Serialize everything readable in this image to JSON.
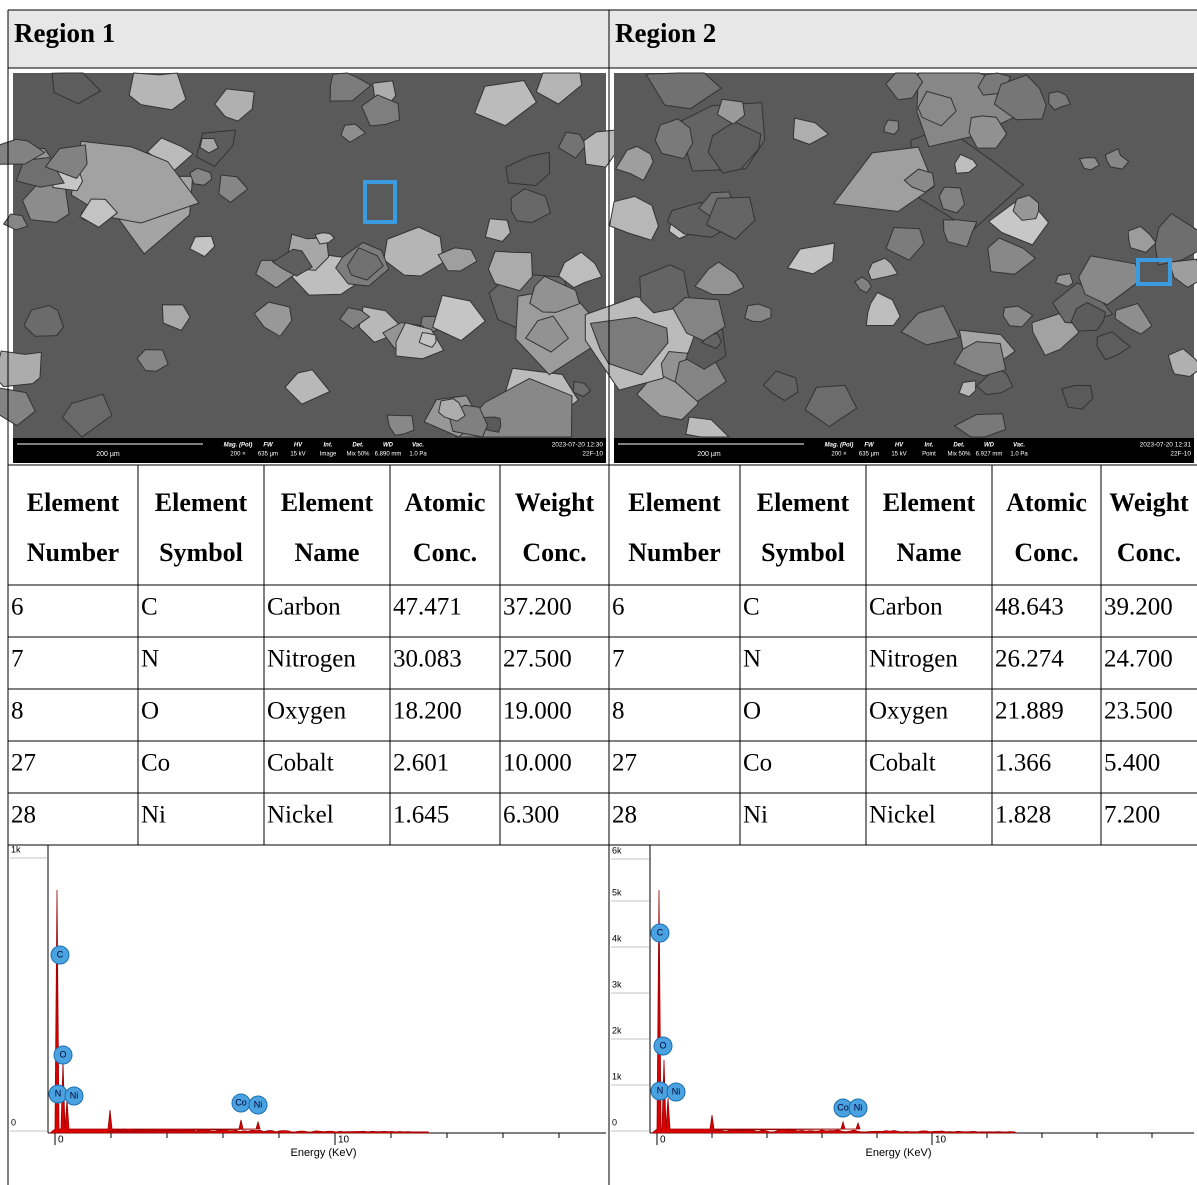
{
  "regions": [
    {
      "title": "Region 1",
      "image": {
        "scale_bar": "200 µm",
        "info": [
          {
            "label": "Mag. (Pol)",
            "value": "200 ×"
          },
          {
            "label": "FW",
            "value": "635 µm"
          },
          {
            "label": "HV",
            "value": "15 kV"
          },
          {
            "label": "Int.",
            "value": "Image"
          },
          {
            "label": "Det.",
            "value": "Mix 50%"
          },
          {
            "label": "WD",
            "value": "6.890 mm"
          },
          {
            "label": "Vac.",
            "value": "1.0 Pa"
          }
        ],
        "timestamp": "2023-07-20 12:30",
        "sample": "22F-10"
      },
      "table": {
        "header": [
          [
            "Element",
            "Number"
          ],
          [
            "Element",
            "Symbol"
          ],
          [
            "Element",
            "Name"
          ],
          [
            "Atomic",
            "Conc."
          ],
          [
            "Weight",
            "Conc."
          ]
        ],
        "rows": [
          [
            "6",
            "C",
            "Carbon",
            "47.471",
            "37.200"
          ],
          [
            "7",
            "N",
            "Nitrogen",
            "30.083",
            "27.500"
          ],
          [
            "8",
            "O",
            "Oxygen",
            "18.200",
            "19.000"
          ],
          [
            "27",
            "Co",
            "Cobalt",
            "2.601",
            "10.000"
          ],
          [
            "28",
            "Ni",
            "Nickel",
            "1.645",
            "6.300"
          ]
        ]
      },
      "spectrum": {
        "y_ticks": [
          "0",
          "1k"
        ],
        "x_ticks": [
          "0",
          "10"
        ],
        "x_label": "Energy (KeV)",
        "peaks": [
          "C",
          "O",
          "N",
          "Ni",
          "Co",
          "Ni"
        ]
      }
    },
    {
      "title": "Region 2",
      "image": {
        "scale_bar": "200 µm",
        "info": [
          {
            "label": "Mag. (Pol)",
            "value": "200 ×"
          },
          {
            "label": "FW",
            "value": "635 µm"
          },
          {
            "label": "HV",
            "value": "15 kV"
          },
          {
            "label": "Int.",
            "value": "Point"
          },
          {
            "label": "Det.",
            "value": "Mix 50%"
          },
          {
            "label": "WD",
            "value": "6.927 mm"
          },
          {
            "label": "Vac.",
            "value": "1.0 Pa"
          }
        ],
        "timestamp": "2023-07-20 12:31",
        "sample": "22F-10"
      },
      "table": {
        "header": [
          [
            "Element",
            "Number"
          ],
          [
            "Element",
            "Symbol"
          ],
          [
            "Element",
            "Name"
          ],
          [
            "Atomic",
            "Conc."
          ],
          [
            "Weight",
            "Conc."
          ]
        ],
        "rows": [
          [
            "6",
            "C",
            "Carbon",
            "48.643",
            "39.200"
          ],
          [
            "7",
            "N",
            "Nitrogen",
            "26.274",
            "24.700"
          ],
          [
            "8",
            "O",
            "Oxygen",
            "21.889",
            "23.500"
          ],
          [
            "27",
            "Co",
            "Cobalt",
            "1.366",
            "5.400"
          ],
          [
            "28",
            "Ni",
            "Nickel",
            "1.828",
            "7.200"
          ]
        ]
      },
      "spectrum": {
        "y_ticks": [
          "0",
          "1k",
          "2k",
          "3k",
          "4k",
          "5k",
          "6k"
        ],
        "x_ticks": [
          "0",
          "10"
        ],
        "x_label": "Energy (KeV)",
        "peaks": [
          "C",
          "O",
          "N",
          "Ni",
          "Co",
          "Ni"
        ]
      }
    }
  ]
}
